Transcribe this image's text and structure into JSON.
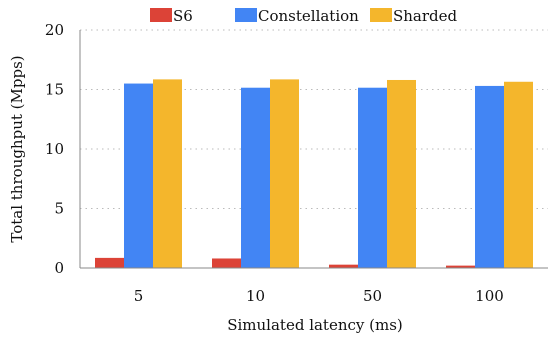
{
  "chart_data": {
    "type": "bar",
    "title": "",
    "xlabel": "Simulated latency (ms)",
    "ylabel": "Total throughput (Mpps)",
    "categories": [
      "5",
      "10",
      "50",
      "100"
    ],
    "ylim": [
      0,
      20
    ],
    "yticks": [
      0,
      5,
      10,
      15,
      20
    ],
    "grid": true,
    "legend_position": "top",
    "series": [
      {
        "name": "S6",
        "color": "#dc4337",
        "values": [
          0.85,
          0.8,
          0.28,
          0.2
        ]
      },
      {
        "name": "Constellation",
        "color": "#4285f4",
        "values": [
          15.5,
          15.15,
          15.15,
          15.3
        ]
      },
      {
        "name": "Sharded",
        "color": "#f4b62c",
        "values": [
          15.85,
          15.85,
          15.8,
          15.65
        ]
      }
    ]
  }
}
